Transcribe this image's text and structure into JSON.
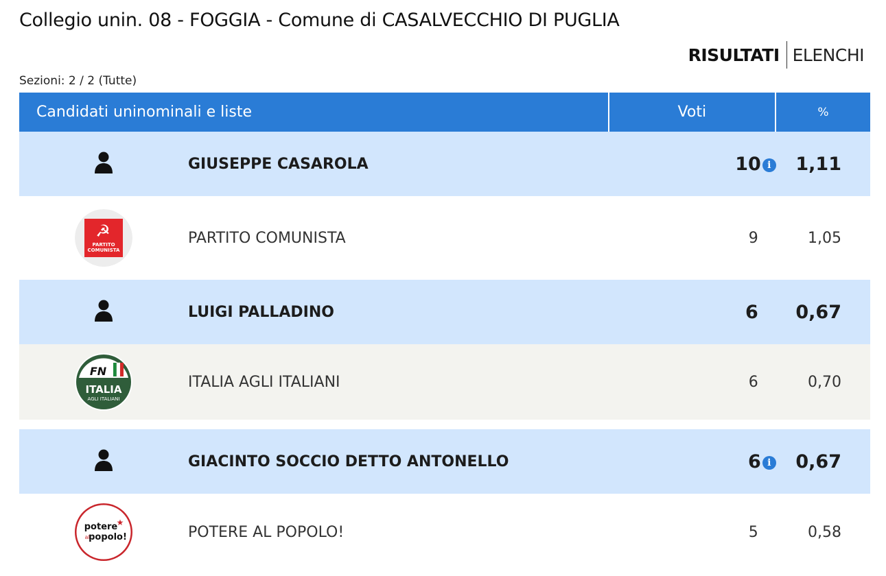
{
  "header": {
    "title": "Collegio unin. 08 - FOGGIA - Comune di CASALVECCHIO DI PUGLIA",
    "nav_active": "RISULTATI",
    "nav_other": "ELENCHI",
    "sections": "Sezioni: 2 / 2 (Tutte)"
  },
  "table": {
    "col_name": "Candidati uninominali e liste",
    "col_votes": "Voti",
    "col_pct": "%"
  },
  "rows": [
    {
      "type": "candidate",
      "icon": "person-icon",
      "name": "GIUSEPPE CASAROLA",
      "votes": "10",
      "info": true,
      "pct": "1,11"
    },
    {
      "type": "list",
      "icon": "partito-comunista-logo",
      "logo_text": [
        "PARTITO",
        "COMUNISTA"
      ],
      "name": "PARTITO COMUNISTA",
      "votes": "9",
      "pct": "1,05"
    },
    {
      "type": "candidate",
      "icon": "person-icon",
      "name": "LUIGI PALLADINO",
      "votes": "6",
      "info": false,
      "pct": "0,67"
    },
    {
      "type": "list",
      "icon": "italia-agli-italiani-logo",
      "logo_text": [
        "FN",
        "ITALIA",
        "AGLI ITALIANI"
      ],
      "name": "ITALIA AGLI ITALIANI",
      "votes": "6",
      "pct": "0,70"
    },
    {
      "type": "candidate",
      "icon": "person-icon",
      "name": "GIACINTO SOCCIO DETTO ANTONELLO",
      "votes": "6",
      "info": true,
      "pct": "0,67"
    },
    {
      "type": "list",
      "icon": "potere-al-popolo-logo",
      "logo_text": [
        "potere",
        "al",
        "popolo!"
      ],
      "name": "POTERE AL POPOLO!",
      "votes": "5",
      "pct": "0,58"
    }
  ],
  "colors": {
    "header_blue": "#2a7cd6",
    "candidate_row": "#d2e6fd",
    "alt_row": "#f3f3ef"
  }
}
